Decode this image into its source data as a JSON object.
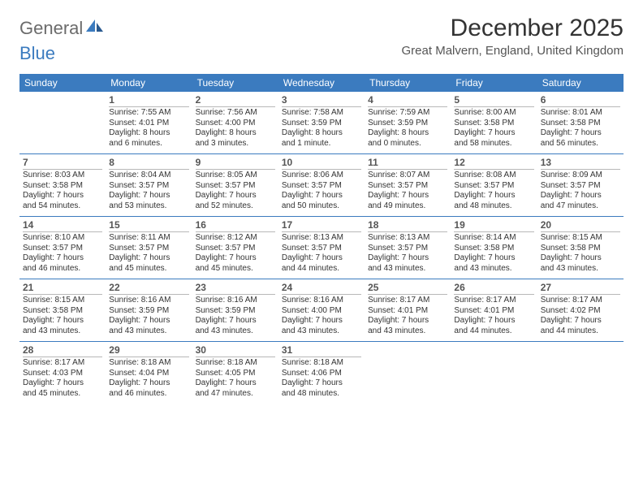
{
  "brand": {
    "part1": "General",
    "part2": "Blue"
  },
  "title": "December 2025",
  "location": "Great Malvern, England, United Kingdom",
  "colors": {
    "header_bg": "#3b7bbf",
    "header_text": "#ffffff",
    "rule": "#3b7bbf",
    "daynum": "#555555",
    "body_text": "#333333"
  },
  "weekdays": [
    "Sunday",
    "Monday",
    "Tuesday",
    "Wednesday",
    "Thursday",
    "Friday",
    "Saturday"
  ],
  "weeks": [
    [
      {},
      {
        "n": "1",
        "sr": "Sunrise: 7:55 AM",
        "ss": "Sunset: 4:01 PM",
        "d1": "Daylight: 8 hours",
        "d2": "and 6 minutes."
      },
      {
        "n": "2",
        "sr": "Sunrise: 7:56 AM",
        "ss": "Sunset: 4:00 PM",
        "d1": "Daylight: 8 hours",
        "d2": "and 3 minutes."
      },
      {
        "n": "3",
        "sr": "Sunrise: 7:58 AM",
        "ss": "Sunset: 3:59 PM",
        "d1": "Daylight: 8 hours",
        "d2": "and 1 minute."
      },
      {
        "n": "4",
        "sr": "Sunrise: 7:59 AM",
        "ss": "Sunset: 3:59 PM",
        "d1": "Daylight: 8 hours",
        "d2": "and 0 minutes."
      },
      {
        "n": "5",
        "sr": "Sunrise: 8:00 AM",
        "ss": "Sunset: 3:58 PM",
        "d1": "Daylight: 7 hours",
        "d2": "and 58 minutes."
      },
      {
        "n": "6",
        "sr": "Sunrise: 8:01 AM",
        "ss": "Sunset: 3:58 PM",
        "d1": "Daylight: 7 hours",
        "d2": "and 56 minutes."
      }
    ],
    [
      {
        "n": "7",
        "sr": "Sunrise: 8:03 AM",
        "ss": "Sunset: 3:58 PM",
        "d1": "Daylight: 7 hours",
        "d2": "and 54 minutes."
      },
      {
        "n": "8",
        "sr": "Sunrise: 8:04 AM",
        "ss": "Sunset: 3:57 PM",
        "d1": "Daylight: 7 hours",
        "d2": "and 53 minutes."
      },
      {
        "n": "9",
        "sr": "Sunrise: 8:05 AM",
        "ss": "Sunset: 3:57 PM",
        "d1": "Daylight: 7 hours",
        "d2": "and 52 minutes."
      },
      {
        "n": "10",
        "sr": "Sunrise: 8:06 AM",
        "ss": "Sunset: 3:57 PM",
        "d1": "Daylight: 7 hours",
        "d2": "and 50 minutes."
      },
      {
        "n": "11",
        "sr": "Sunrise: 8:07 AM",
        "ss": "Sunset: 3:57 PM",
        "d1": "Daylight: 7 hours",
        "d2": "and 49 minutes."
      },
      {
        "n": "12",
        "sr": "Sunrise: 8:08 AM",
        "ss": "Sunset: 3:57 PM",
        "d1": "Daylight: 7 hours",
        "d2": "and 48 minutes."
      },
      {
        "n": "13",
        "sr": "Sunrise: 8:09 AM",
        "ss": "Sunset: 3:57 PM",
        "d1": "Daylight: 7 hours",
        "d2": "and 47 minutes."
      }
    ],
    [
      {
        "n": "14",
        "sr": "Sunrise: 8:10 AM",
        "ss": "Sunset: 3:57 PM",
        "d1": "Daylight: 7 hours",
        "d2": "and 46 minutes."
      },
      {
        "n": "15",
        "sr": "Sunrise: 8:11 AM",
        "ss": "Sunset: 3:57 PM",
        "d1": "Daylight: 7 hours",
        "d2": "and 45 minutes."
      },
      {
        "n": "16",
        "sr": "Sunrise: 8:12 AM",
        "ss": "Sunset: 3:57 PM",
        "d1": "Daylight: 7 hours",
        "d2": "and 45 minutes."
      },
      {
        "n": "17",
        "sr": "Sunrise: 8:13 AM",
        "ss": "Sunset: 3:57 PM",
        "d1": "Daylight: 7 hours",
        "d2": "and 44 minutes."
      },
      {
        "n": "18",
        "sr": "Sunrise: 8:13 AM",
        "ss": "Sunset: 3:57 PM",
        "d1": "Daylight: 7 hours",
        "d2": "and 43 minutes."
      },
      {
        "n": "19",
        "sr": "Sunrise: 8:14 AM",
        "ss": "Sunset: 3:58 PM",
        "d1": "Daylight: 7 hours",
        "d2": "and 43 minutes."
      },
      {
        "n": "20",
        "sr": "Sunrise: 8:15 AM",
        "ss": "Sunset: 3:58 PM",
        "d1": "Daylight: 7 hours",
        "d2": "and 43 minutes."
      }
    ],
    [
      {
        "n": "21",
        "sr": "Sunrise: 8:15 AM",
        "ss": "Sunset: 3:58 PM",
        "d1": "Daylight: 7 hours",
        "d2": "and 43 minutes."
      },
      {
        "n": "22",
        "sr": "Sunrise: 8:16 AM",
        "ss": "Sunset: 3:59 PM",
        "d1": "Daylight: 7 hours",
        "d2": "and 43 minutes."
      },
      {
        "n": "23",
        "sr": "Sunrise: 8:16 AM",
        "ss": "Sunset: 3:59 PM",
        "d1": "Daylight: 7 hours",
        "d2": "and 43 minutes."
      },
      {
        "n": "24",
        "sr": "Sunrise: 8:16 AM",
        "ss": "Sunset: 4:00 PM",
        "d1": "Daylight: 7 hours",
        "d2": "and 43 minutes."
      },
      {
        "n": "25",
        "sr": "Sunrise: 8:17 AM",
        "ss": "Sunset: 4:01 PM",
        "d1": "Daylight: 7 hours",
        "d2": "and 43 minutes."
      },
      {
        "n": "26",
        "sr": "Sunrise: 8:17 AM",
        "ss": "Sunset: 4:01 PM",
        "d1": "Daylight: 7 hours",
        "d2": "and 44 minutes."
      },
      {
        "n": "27",
        "sr": "Sunrise: 8:17 AM",
        "ss": "Sunset: 4:02 PM",
        "d1": "Daylight: 7 hours",
        "d2": "and 44 minutes."
      }
    ],
    [
      {
        "n": "28",
        "sr": "Sunrise: 8:17 AM",
        "ss": "Sunset: 4:03 PM",
        "d1": "Daylight: 7 hours",
        "d2": "and 45 minutes."
      },
      {
        "n": "29",
        "sr": "Sunrise: 8:18 AM",
        "ss": "Sunset: 4:04 PM",
        "d1": "Daylight: 7 hours",
        "d2": "and 46 minutes."
      },
      {
        "n": "30",
        "sr": "Sunrise: 8:18 AM",
        "ss": "Sunset: 4:05 PM",
        "d1": "Daylight: 7 hours",
        "d2": "and 47 minutes."
      },
      {
        "n": "31",
        "sr": "Sunrise: 8:18 AM",
        "ss": "Sunset: 4:06 PM",
        "d1": "Daylight: 7 hours",
        "d2": "and 48 minutes."
      },
      {},
      {},
      {}
    ]
  ]
}
